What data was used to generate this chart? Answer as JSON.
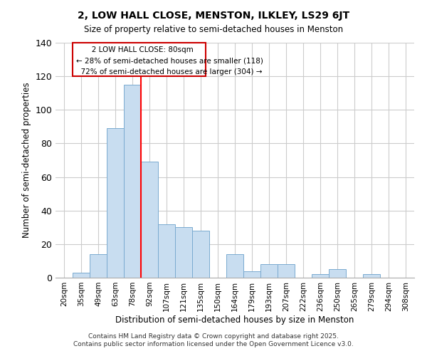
{
  "title": "2, LOW HALL CLOSE, MENSTON, ILKLEY, LS29 6JT",
  "subtitle": "Size of property relative to semi-detached houses in Menston",
  "xlabel": "Distribution of semi-detached houses by size in Menston",
  "ylabel": "Number of semi-detached properties",
  "bar_color": "#c8ddf0",
  "bar_edge_color": "#7aaad0",
  "categories": [
    "20sqm",
    "35sqm",
    "49sqm",
    "63sqm",
    "78sqm",
    "92sqm",
    "107sqm",
    "121sqm",
    "135sqm",
    "150sqm",
    "164sqm",
    "179sqm",
    "193sqm",
    "207sqm",
    "222sqm",
    "236sqm",
    "250sqm",
    "265sqm",
    "279sqm",
    "294sqm",
    "308sqm"
  ],
  "values": [
    0,
    3,
    14,
    89,
    115,
    69,
    32,
    30,
    28,
    0,
    14,
    4,
    8,
    8,
    0,
    2,
    5,
    0,
    2,
    0,
    0
  ],
  "ylim": [
    0,
    140
  ],
  "yticks": [
    0,
    20,
    40,
    60,
    80,
    100,
    120,
    140
  ],
  "property_label": "2 LOW HALL CLOSE: 80sqm",
  "pct_smaller": 28,
  "pct_larger": 72,
  "n_smaller": 118,
  "n_larger": 304,
  "vline_x_index": 4,
  "box_color": "#cc0000",
  "footer_line1": "Contains HM Land Registry data © Crown copyright and database right 2025.",
  "footer_line2": "Contains public sector information licensed under the Open Government Licence v3.0.",
  "background_color": "#ffffff",
  "grid_color": "#cccccc"
}
